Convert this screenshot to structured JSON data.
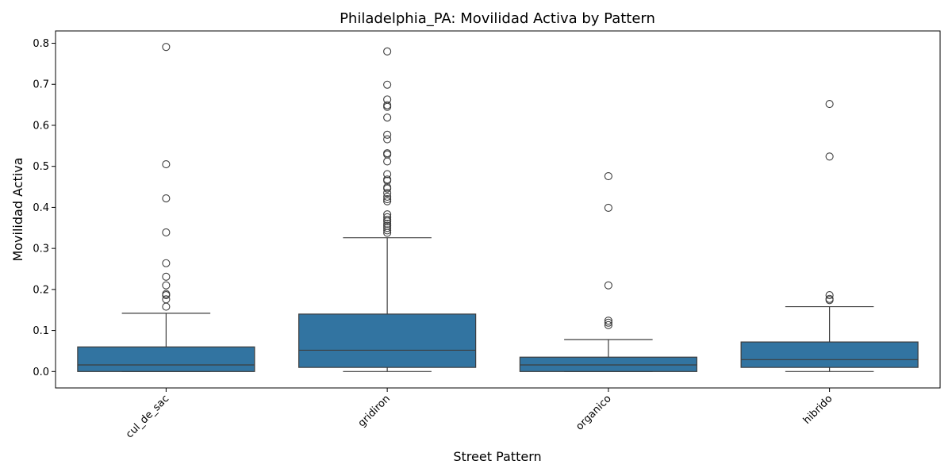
{
  "chart_data": {
    "type": "box",
    "title": "Philadelphia_PA: Movilidad Activa by Pattern",
    "xlabel": "Street Pattern",
    "ylabel": "Movilidad Activa",
    "ylim": [
      -0.04,
      0.83
    ],
    "yticks": [
      0.0,
      0.1,
      0.2,
      0.3,
      0.4,
      0.5,
      0.6,
      0.7,
      0.8
    ],
    "ytick_labels": [
      "0.0",
      "0.1",
      "0.2",
      "0.3",
      "0.4",
      "0.5",
      "0.6",
      "0.7",
      "0.8"
    ],
    "categories": [
      "cul_de_sac",
      "gridiron",
      "organico",
      "hibrido"
    ],
    "box_color": "#3274a1",
    "edge_color": "#3d3d3d",
    "grid": false,
    "boxes": [
      {
        "category": "cul_de_sac",
        "whisker_low": 0.0,
        "q1": 0.0,
        "median": 0.016,
        "q3": 0.06,
        "whisker_high": 0.142,
        "outliers": [
          0.791,
          0.505,
          0.422,
          0.339,
          0.264,
          0.231,
          0.21,
          0.189,
          0.186,
          0.176,
          0.158
        ]
      },
      {
        "category": "gridiron",
        "whisker_low": 0.0,
        "q1": 0.01,
        "median": 0.052,
        "q3": 0.14,
        "whisker_high": 0.326,
        "outliers": [
          0.78,
          0.699,
          0.663,
          0.649,
          0.645,
          0.619,
          0.577,
          0.566,
          0.532,
          0.529,
          0.512,
          0.481,
          0.468,
          0.465,
          0.449,
          0.446,
          0.435,
          0.426,
          0.42,
          0.415,
          0.383,
          0.376,
          0.37,
          0.366,
          0.36,
          0.355,
          0.35,
          0.344,
          0.338
        ]
      },
      {
        "category": "organico",
        "whisker_low": 0.0,
        "q1": 0.0,
        "median": 0.016,
        "q3": 0.035,
        "whisker_high": 0.078,
        "outliers": [
          0.476,
          0.399,
          0.21,
          0.124,
          0.119,
          0.113
        ]
      },
      {
        "category": "hibrido",
        "whisker_low": 0.0,
        "q1": 0.01,
        "median": 0.029,
        "q3": 0.072,
        "whisker_high": 0.158,
        "outliers": [
          0.652,
          0.524,
          0.186,
          0.177,
          0.174
        ]
      }
    ]
  }
}
